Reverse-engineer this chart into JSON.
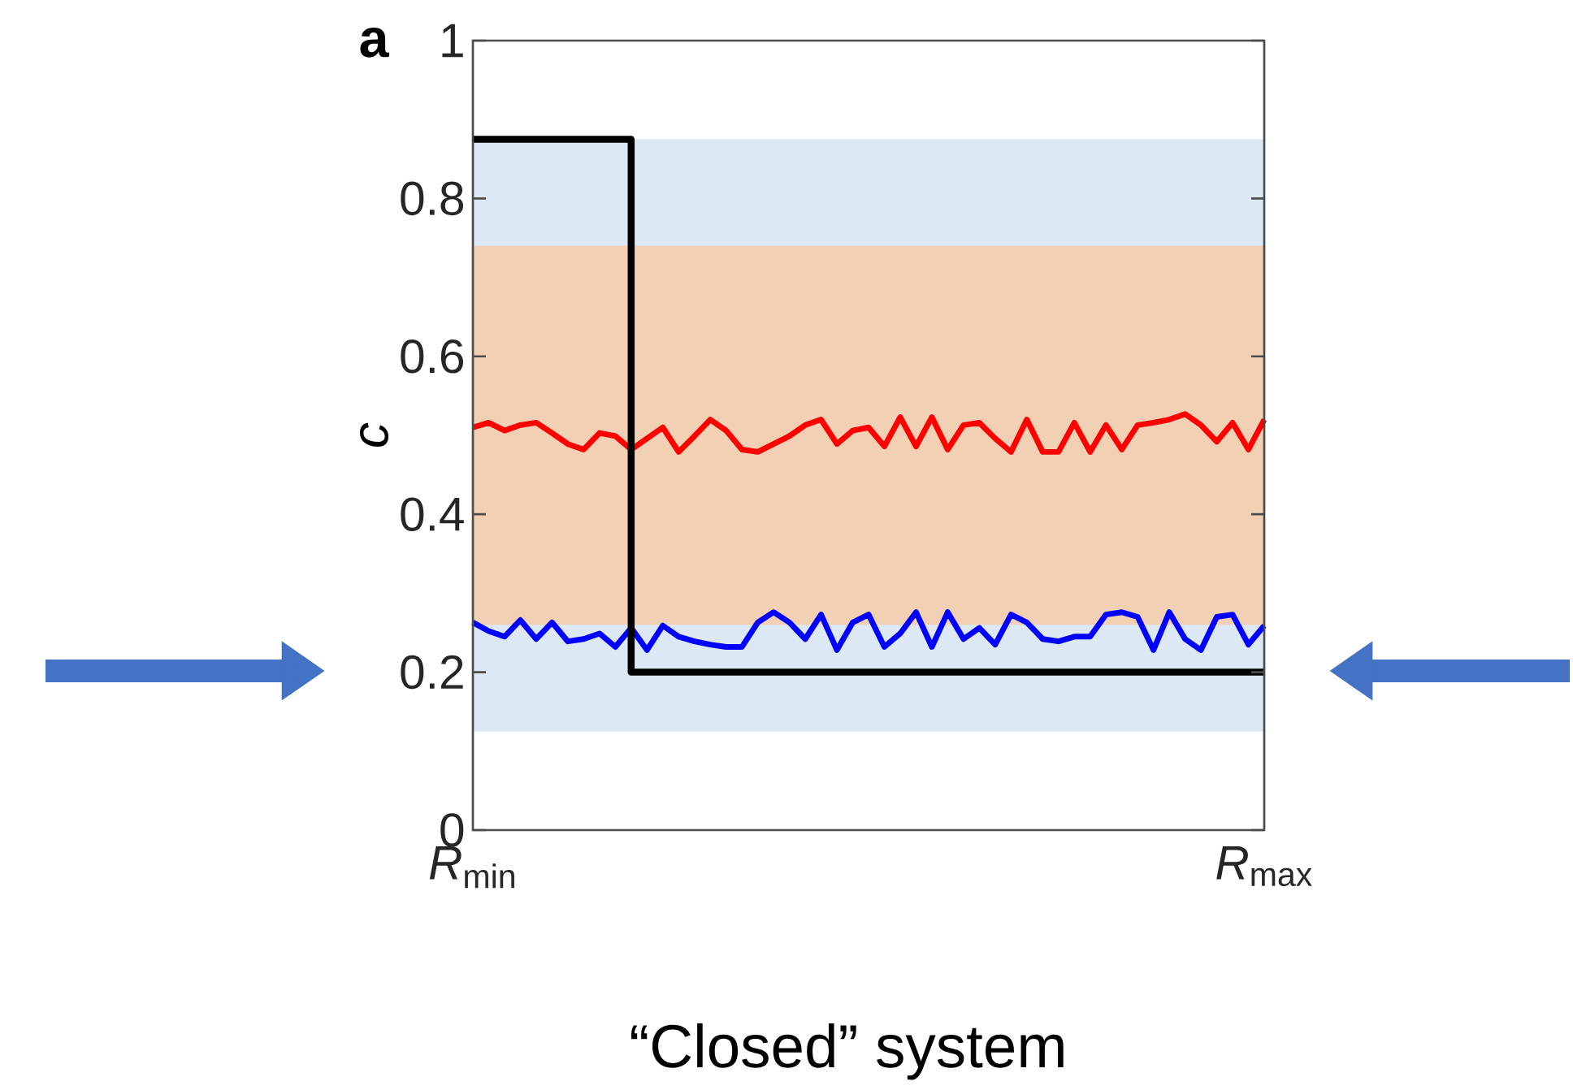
{
  "chart_data": {
    "type": "line",
    "title": "a",
    "ylabel": "c",
    "annotations": [
      "“Closed” system"
    ],
    "categories": [
      "*R*$_{min}$",
      null,
      null,
      null,
      null,
      null,
      null,
      null,
      null,
      null,
      null,
      null,
      null,
      null,
      null,
      null,
      null,
      null,
      null,
      null,
      null,
      null,
      null,
      null,
      null,
      null,
      null,
      null,
      null,
      null,
      null,
      null,
      null,
      null,
      null,
      null,
      null,
      null,
      null,
      null,
      null,
      null,
      null,
      null,
      null,
      null,
      null,
      null,
      null,
      null,
      "*R*$_{max}$"
    ],
    "ylim": [
      0,
      1
    ],
    "yticks": [
      0,
      0.2,
      0.4,
      0.6,
      0.8,
      1
    ],
    "marker": "none",
    "bands": [
      {
        "axis": "y",
        "from": 0.125,
        "to": 0.875,
        "color": "#dce8f4"
      },
      {
        "axis": "y",
        "from": 0.26,
        "to": 0.74,
        "color": "#f2d0b4"
      }
    ],
    "series": [
      {
        "color": "#ff0000",
        "values": [
          0.51,
          0.516,
          0.506,
          0.513,
          0.516,
          0.503,
          0.489,
          0.482,
          0.503,
          0.499,
          0.482,
          0.496,
          0.51,
          0.479,
          0.499,
          0.52,
          0.506,
          0.482,
          0.479,
          0.489,
          0.499,
          0.513,
          0.52,
          0.489,
          0.506,
          0.51,
          0.486,
          0.523,
          0.486,
          0.523,
          0.482,
          0.513,
          0.516,
          0.496,
          0.479,
          0.52,
          0.479,
          0.479,
          0.516,
          0.479,
          0.513,
          0.482,
          0.513,
          0.516,
          0.52,
          0.527,
          0.513,
          0.492,
          0.516,
          0.482,
          0.52
        ]
      },
      {
        "color": "#0000ff",
        "values": [
          0.263,
          0.252,
          0.245,
          0.266,
          0.242,
          0.263,
          0.239,
          0.242,
          0.249,
          0.232,
          0.256,
          0.228,
          0.259,
          0.245,
          0.239,
          0.235,
          0.232,
          0.232,
          0.263,
          0.276,
          0.263,
          0.242,
          0.273,
          0.228,
          0.263,
          0.273,
          0.232,
          0.249,
          0.276,
          0.232,
          0.276,
          0.242,
          0.256,
          0.235,
          0.273,
          0.263,
          0.242,
          0.239,
          0.245,
          0.245,
          0.273,
          0.276,
          0.27,
          0.228,
          0.276,
          0.242,
          0.228,
          0.27,
          0.273,
          0.235,
          0.259
        ]
      },
      {
        "type": "step",
        "color": "#000000",
        "values": [
          0.875,
          0.875,
          0.875,
          0.875,
          0.875,
          0.875,
          0.875,
          0.875,
          0.875,
          0.875,
          0.2,
          0.2,
          0.2,
          0.2,
          0.2,
          0.2,
          0.2,
          0.2,
          0.2,
          0.2,
          0.2,
          0.2,
          0.2,
          0.2,
          0.2,
          0.2,
          0.2,
          0.2,
          0.2,
          0.2,
          0.2,
          0.2,
          0.2,
          0.2,
          0.2,
          0.2,
          0.2,
          0.2,
          0.2,
          0.2,
          0.2,
          0.2,
          0.2,
          0.2,
          0.2,
          0.2,
          0.2,
          0.2,
          0.2,
          0.2,
          0.2
        ]
      }
    ]
  }
}
